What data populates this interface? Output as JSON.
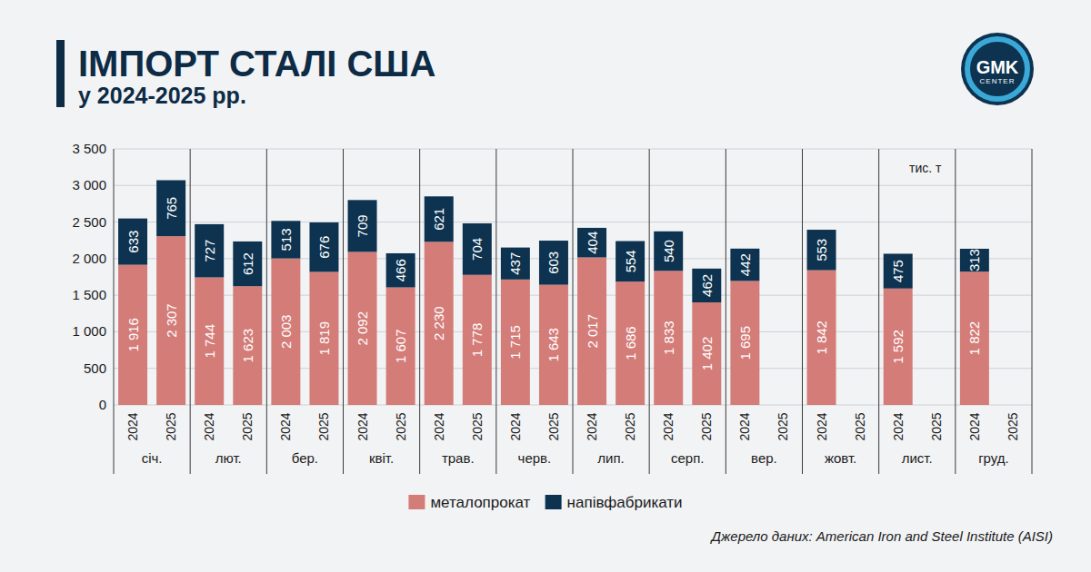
{
  "chart_data": {
    "type": "bar",
    "stacked": true,
    "data_labels": true,
    "grid": true,
    "legend": "bottom",
    "title": "ІМПОРТ СТАЛІ США",
    "subtitle": "у 2024-2025 рр.",
    "unit_label": "тис. т",
    "source": "Джерело даних: American Iron and Steel Institute (AISI)",
    "logo_text": "GMK",
    "logo_subtext": "CENTER",
    "groups": [
      "січ.",
      "лют.",
      "бер.",
      "квіт.",
      "трав.",
      "черв.",
      "лип.",
      "серп.",
      "вер.",
      "жовт.",
      "лист.",
      "груд."
    ],
    "categories": [
      "2024",
      "2025",
      "2024",
      "2025",
      "2024",
      "2025",
      "2024",
      "2025",
      "2024",
      "2025",
      "2024",
      "2025",
      "2024",
      "2025",
      "2024",
      "2025",
      "2024",
      "2025",
      "2024",
      "2025",
      "2024",
      "2025",
      "2024",
      "2025"
    ],
    "ylim": [
      0,
      3500
    ],
    "yticks": [
      0,
      500,
      {
        "value": 1000,
        "label": "1 000"
      },
      {
        "value": 1500,
        "label": "1 500"
      },
      {
        "value": 2000,
        "label": "2 000"
      },
      {
        "value": 2500,
        "label": "2 500"
      },
      {
        "value": 3000,
        "label": "3 000"
      },
      {
        "value": 3500,
        "label": "3 500"
      }
    ],
    "series": [
      {
        "name": "металопрокат",
        "color": "#d47c78",
        "values": [
          1916,
          2307,
          1744,
          1623,
          2003,
          1819,
          2092,
          1607,
          2230,
          1778,
          1715,
          1643,
          2017,
          1686,
          1833,
          1402,
          1695,
          null,
          1842,
          null,
          1592,
          null,
          1822,
          null
        ],
        "value_labels": [
          "1 916",
          "2 307",
          "1 744",
          "1 623",
          "2 003",
          "1 819",
          "2 092",
          "1 607",
          "2 230",
          "1 778",
          "1 715",
          "1 643",
          "2 017",
          "1 686",
          "1 833",
          "1 402",
          "1 695",
          null,
          "1 842",
          null,
          "1 592",
          null,
          "1 822",
          null
        ]
      },
      {
        "name": "напівфабрикати",
        "color": "#0d3350",
        "values": [
          633,
          765,
          727,
          612,
          513,
          676,
          709,
          466,
          621,
          704,
          437,
          603,
          404,
          554,
          540,
          462,
          442,
          null,
          553,
          null,
          475,
          null,
          313,
          null
        ],
        "value_labels": [
          "633",
          "765",
          "727",
          "612",
          "513",
          "676",
          "709",
          "466",
          "621",
          "704",
          "437",
          "603",
          "404",
          "554",
          "540",
          "462",
          "442",
          null,
          "553",
          null,
          "475",
          null,
          "313",
          null
        ]
      }
    ]
  }
}
